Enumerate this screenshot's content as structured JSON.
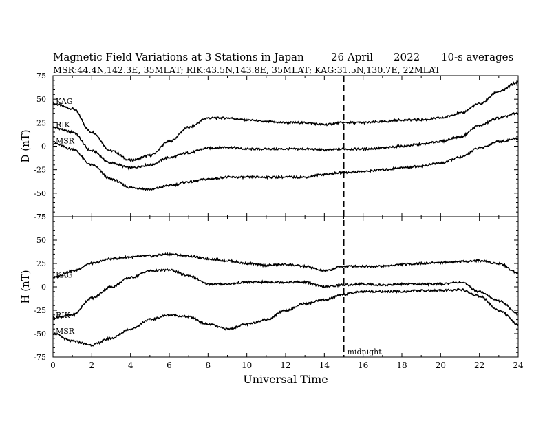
{
  "header": {
    "title": "Magnetic Field Variations at 3 Stations in Japan",
    "date": "26  April",
    "year": "2022",
    "averaging": "10-s averages",
    "stations_line": "MSR:44.4N,142.3E, 35MLAT;  RIK:43.5N,143.8E, 35MLAT;  KAG:31.5N,130.7E, 22MLAT"
  },
  "annotation": {
    "midnight_label": "midnight",
    "midnight_x": 15
  },
  "colors": {
    "line": "#000000",
    "background": "#ffffff"
  },
  "chart_data": [
    {
      "type": "line",
      "panel": "top",
      "ylabel": "D (nT)",
      "xlabel": "",
      "xlim": [
        0,
        24
      ],
      "ylim": [
        -75,
        75
      ],
      "yticks": [
        -75,
        -50,
        -25,
        0,
        25,
        50,
        75
      ],
      "ytick_labels": [
        "-75",
        "-50",
        "-25",
        "0",
        "25",
        "50",
        "75"
      ],
      "x": [
        0,
        1,
        2,
        3,
        4,
        5,
        6,
        7,
        8,
        9,
        10,
        11,
        12,
        13,
        14,
        15,
        16,
        17,
        18,
        19,
        20,
        21,
        22,
        23,
        24
      ],
      "series": [
        {
          "name": "KAG",
          "values": [
            45,
            40,
            15,
            -5,
            -15,
            -10,
            5,
            20,
            30,
            30,
            28,
            26,
            25,
            25,
            23,
            25,
            25,
            26,
            28,
            28,
            30,
            35,
            45,
            58,
            68
          ]
        },
        {
          "name": "RIK",
          "values": [
            20,
            15,
            -5,
            -18,
            -23,
            -20,
            -12,
            -7,
            -2,
            -1,
            -3,
            -3,
            -3,
            -3,
            -4,
            -3,
            -3,
            -2,
            0,
            2,
            5,
            10,
            22,
            30,
            35
          ]
        },
        {
          "name": "MSR",
          "values": [
            3,
            -3,
            -20,
            -35,
            -44,
            -46,
            -42,
            -38,
            -35,
            -33,
            -33,
            -33,
            -33,
            -33,
            -30,
            -28,
            -27,
            -25,
            -23,
            -21,
            -18,
            -12,
            -2,
            5,
            8
          ]
        }
      ]
    },
    {
      "type": "line",
      "panel": "bottom",
      "ylabel": "H (nT)",
      "xlabel": "Universal Time",
      "xlim": [
        0,
        24
      ],
      "ylim": [
        -75,
        75
      ],
      "yticks": [
        -75,
        -50,
        -25,
        0,
        25,
        50,
        75
      ],
      "ytick_labels": [
        "-75",
        "-50",
        "-25",
        "0",
        "25",
        "50",
        "75"
      ],
      "xticks": [
        0,
        2,
        4,
        6,
        8,
        10,
        12,
        14,
        16,
        18,
        20,
        22,
        24
      ],
      "xtick_labels": [
        "0",
        "2",
        "4",
        "6",
        "8",
        "10",
        "12",
        "14",
        "16",
        "18",
        "20",
        "22",
        "24"
      ],
      "x": [
        0,
        1,
        2,
        3,
        4,
        5,
        6,
        7,
        8,
        9,
        10,
        11,
        12,
        13,
        14,
        15,
        16,
        17,
        18,
        19,
        20,
        21,
        22,
        23,
        24
      ],
      "series": [
        {
          "name": "KAG",
          "values": [
            10,
            17,
            25,
            30,
            32,
            33,
            35,
            33,
            30,
            28,
            25,
            23,
            24,
            22,
            17,
            22,
            22,
            22,
            24,
            25,
            26,
            27,
            28,
            25,
            15
          ]
        },
        {
          "name": "RIK",
          "values": [
            -33,
            -30,
            -12,
            0,
            10,
            17,
            18,
            12,
            3,
            3,
            5,
            5,
            5,
            5,
            0,
            2,
            3,
            2,
            3,
            3,
            3,
            5,
            -5,
            -15,
            -28
          ]
        },
        {
          "name": "MSR",
          "values": [
            -50,
            -58,
            -62,
            -55,
            -45,
            -35,
            -30,
            -32,
            -40,
            -45,
            -40,
            -35,
            -25,
            -18,
            -14,
            -8,
            -5,
            -5,
            -5,
            -4,
            -4,
            -3,
            -10,
            -25,
            -40
          ]
        }
      ]
    }
  ]
}
